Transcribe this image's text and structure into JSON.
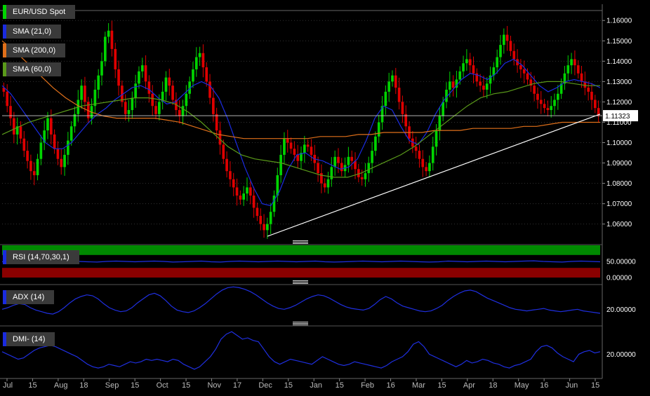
{
  "colors": {
    "background": "#000000",
    "grid": "#333333",
    "bull": "#00d400",
    "bear": "#e00000",
    "sma21": "#1a2be0",
    "sma200": "#e0701a",
    "sma60": "#5a9a1a",
    "trendline": "#ffffff",
    "indicator_line": "#1f2fe0",
    "rsi_upper_zone": "#008a00",
    "rsi_lower_zone": "#8a0000"
  },
  "legends": {
    "main": "EUR/USD Spot",
    "sma21": "SMA (21,0)",
    "sma200": "SMA (200,0)",
    "sma60": "SMA (60,0)",
    "rsi": "RSI (14,70,30,1)",
    "adx": "ADX (14)",
    "dmi": "DMI- (14)"
  },
  "chart_data": [
    {
      "type": "candlestick",
      "title": "EUR/USD Spot",
      "x_ticks": [
        "Jul",
        "15",
        "Aug",
        "18",
        "Sep",
        "15",
        "Oct",
        "15",
        "Nov",
        "17",
        "Dec",
        "15",
        "Jan",
        "15",
        "Feb",
        "16",
        "Mar",
        "15",
        "Apr",
        "18",
        "May",
        "16",
        "Jun",
        "15"
      ],
      "y_ticks": [
        "1.16000",
        "1.15000",
        "1.14000",
        "1.13000",
        "1.12000",
        "1.11000",
        "1.10000",
        "1.09000",
        "1.08000",
        "1.07000",
        "1.06000"
      ],
      "ylim": [
        1.053,
        1.168
      ],
      "last_price": "1.11323",
      "closes": [
        1.125,
        1.118,
        1.112,
        1.104,
        1.108,
        1.102,
        1.096,
        1.091,
        1.086,
        1.084,
        1.092,
        1.1,
        1.106,
        1.112,
        1.104,
        1.097,
        1.092,
        1.088,
        1.094,
        1.101,
        1.108,
        1.114,
        1.121,
        1.128,
        1.12,
        1.112,
        1.118,
        1.126,
        1.133,
        1.14,
        1.152,
        1.155,
        1.146,
        1.136,
        1.128,
        1.12,
        1.114,
        1.116,
        1.122,
        1.129,
        1.135,
        1.138,
        1.13,
        1.124,
        1.118,
        1.114,
        1.12,
        1.125,
        1.132,
        1.128,
        1.121,
        1.116,
        1.113,
        1.118,
        1.124,
        1.13,
        1.136,
        1.142,
        1.144,
        1.137,
        1.13,
        1.122,
        1.114,
        1.106,
        1.099,
        1.092,
        1.086,
        1.082,
        1.078,
        1.074,
        1.072,
        1.075,
        1.078,
        1.074,
        1.068,
        1.064,
        1.06,
        1.057,
        1.06,
        1.066,
        1.074,
        1.084,
        1.094,
        1.102,
        1.1,
        1.097,
        1.094,
        1.091,
        1.095,
        1.099,
        1.098,
        1.094,
        1.09,
        1.085,
        1.08,
        1.078,
        1.082,
        1.088,
        1.093,
        1.09,
        1.086,
        1.089,
        1.093,
        1.091,
        1.087,
        1.083,
        1.082,
        1.085,
        1.09,
        1.096,
        1.103,
        1.11,
        1.118,
        1.125,
        1.13,
        1.133,
        1.127,
        1.12,
        1.114,
        1.108,
        1.102,
        1.098,
        1.096,
        1.092,
        1.088,
        1.086,
        1.09,
        1.098,
        1.106,
        1.113,
        1.12,
        1.126,
        1.13,
        1.127,
        1.131,
        1.135,
        1.139,
        1.141,
        1.138,
        1.134,
        1.13,
        1.128,
        1.126,
        1.129,
        1.133,
        1.137,
        1.142,
        1.148,
        1.153,
        1.15,
        1.145,
        1.141,
        1.138,
        1.136,
        1.134,
        1.131,
        1.128,
        1.124,
        1.121,
        1.119,
        1.117,
        1.116,
        1.118,
        1.121,
        1.124,
        1.129,
        1.134,
        1.138,
        1.141,
        1.138,
        1.134,
        1.13,
        1.127,
        1.125,
        1.121,
        1.117,
        1.113
      ],
      "series": [
        {
          "name": "SMA (21,0)",
          "values": [
            1.128,
            1.124,
            1.118,
            1.112,
            1.106,
            1.1,
            1.097,
            1.097,
            1.1,
            1.105,
            1.11,
            1.114,
            1.117,
            1.121,
            1.124,
            1.127,
            1.128,
            1.126,
            1.122,
            1.119,
            1.12,
            1.124,
            1.128,
            1.13,
            1.128,
            1.122,
            1.112,
            1.1,
            1.088,
            1.078,
            1.07,
            1.069,
            1.076,
            1.087,
            1.094,
            1.095,
            1.092,
            1.091,
            1.089,
            1.087,
            1.088,
            1.092,
            1.101,
            1.112,
            1.118,
            1.116,
            1.108,
            1.101,
            1.099,
            1.105,
            1.114,
            1.121,
            1.126,
            1.131,
            1.134,
            1.133,
            1.131,
            1.134,
            1.139,
            1.141,
            1.138,
            1.133,
            1.128,
            1.125,
            1.127,
            1.13,
            1.131,
            1.13,
            1.129,
            1.127
          ]
        },
        {
          "name": "SMA (200,0)",
          "values": [
            1.15,
            1.145,
            1.139,
            1.133,
            1.127,
            1.122,
            1.118,
            1.115,
            1.113,
            1.112,
            1.112,
            1.112,
            1.112,
            1.111,
            1.11,
            1.108,
            1.106,
            1.104,
            1.103,
            1.102,
            1.102,
            1.102,
            1.102,
            1.102,
            1.102,
            1.103,
            1.103,
            1.103,
            1.104,
            1.104,
            1.105,
            1.105,
            1.105,
            1.105,
            1.106,
            1.106,
            1.106,
            1.107,
            1.107,
            1.107,
            1.107,
            1.108,
            1.108,
            1.109,
            1.11,
            1.11,
            1.11,
            1.11
          ]
        },
        {
          "name": "SMA (60,0)",
          "values": [
            1.104,
            1.107,
            1.11,
            1.112,
            1.114,
            1.116,
            1.118,
            1.119,
            1.12,
            1.121,
            1.122,
            1.122,
            1.121,
            1.119,
            1.115,
            1.11,
            1.104,
            1.098,
            1.094,
            1.092,
            1.091,
            1.09,
            1.088,
            1.086,
            1.084,
            1.083,
            1.083,
            1.085,
            1.088,
            1.091,
            1.094,
            1.098,
            1.103,
            1.108,
            1.113,
            1.118,
            1.122,
            1.124,
            1.125,
            1.127,
            1.129,
            1.13,
            1.13,
            1.129,
            1.128,
            1.128
          ]
        }
      ],
      "trendline": [
        [
          1.054,
          1.114
        ]
      ]
    },
    {
      "type": "line",
      "title": "RSI (14,70,30,1)",
      "y_ticks": [
        "50.00000",
        "0.00000"
      ],
      "ylim": [
        0,
        100
      ],
      "zones": {
        "upper": [
          70,
          100
        ],
        "lower": [
          0,
          30
        ]
      },
      "values": [
        49,
        50,
        51,
        50,
        49,
        48,
        50,
        51,
        50,
        49,
        48,
        50,
        51,
        50,
        49,
        50,
        51,
        50,
        48,
        49,
        50,
        51,
        49,
        48,
        50,
        51,
        50,
        49,
        50,
        51,
        50,
        49,
        50,
        51,
        49,
        48,
        49,
        50,
        51,
        50,
        49,
        50,
        51,
        50,
        49,
        48,
        49,
        51,
        50,
        49,
        50,
        51,
        50,
        49,
        50,
        51,
        52,
        50,
        49,
        48,
        50,
        51,
        50,
        49
      ]
    },
    {
      "type": "line",
      "title": "ADX (14)",
      "y_ticks": [
        "20.00000"
      ],
      "ylim": [
        8,
        50
      ],
      "values": [
        20,
        22,
        25,
        27,
        26,
        22,
        19,
        17,
        15,
        14,
        17,
        22,
        28,
        33,
        36,
        38,
        37,
        33,
        27,
        22,
        19,
        17,
        18,
        22,
        28,
        33,
        38,
        40,
        37,
        31,
        24,
        19,
        17,
        16,
        18,
        22,
        27,
        33,
        39,
        44,
        47,
        48,
        47,
        45,
        42,
        38,
        33,
        28,
        24,
        21,
        20,
        22,
        25,
        29,
        33,
        36,
        38,
        37,
        34,
        30,
        26,
        23,
        21,
        20,
        19,
        21,
        26,
        32,
        36,
        33,
        28,
        24,
        22,
        20,
        18,
        17,
        18,
        21,
        25,
        31,
        36,
        40,
        43,
        44,
        42,
        38,
        34,
        31,
        28,
        25,
        22,
        20,
        19,
        18,
        19,
        20,
        21,
        19,
        18,
        17,
        18,
        19,
        20,
        18,
        17,
        16,
        15
      ]
    },
    {
      "type": "line",
      "title": "DMI- (14)",
      "y_ticks": [
        "20.00000"
      ],
      "ylim": [
        4,
        42
      ],
      "values": [
        22,
        20,
        18,
        16,
        17,
        20,
        23,
        25,
        26,
        27,
        26,
        24,
        22,
        20,
        18,
        15,
        12,
        10,
        9,
        10,
        12,
        11,
        10,
        12,
        14,
        13,
        14,
        16,
        15,
        16,
        15,
        14,
        16,
        15,
        12,
        10,
        8,
        10,
        14,
        18,
        24,
        32,
        36,
        38,
        35,
        32,
        33,
        31,
        30,
        24,
        18,
        14,
        12,
        14,
        16,
        15,
        14,
        13,
        12,
        15,
        18,
        16,
        14,
        12,
        11,
        12,
        14,
        13,
        12,
        11,
        10,
        9,
        11,
        14,
        16,
        18,
        22,
        28,
        30,
        26,
        20,
        18,
        16,
        14,
        12,
        10,
        12,
        15,
        13,
        14,
        16,
        15,
        13,
        12,
        10,
        9,
        11,
        12,
        14,
        16,
        22,
        26,
        27,
        25,
        21,
        18,
        16,
        14,
        20,
        22,
        23,
        21,
        22
      ]
    }
  ]
}
